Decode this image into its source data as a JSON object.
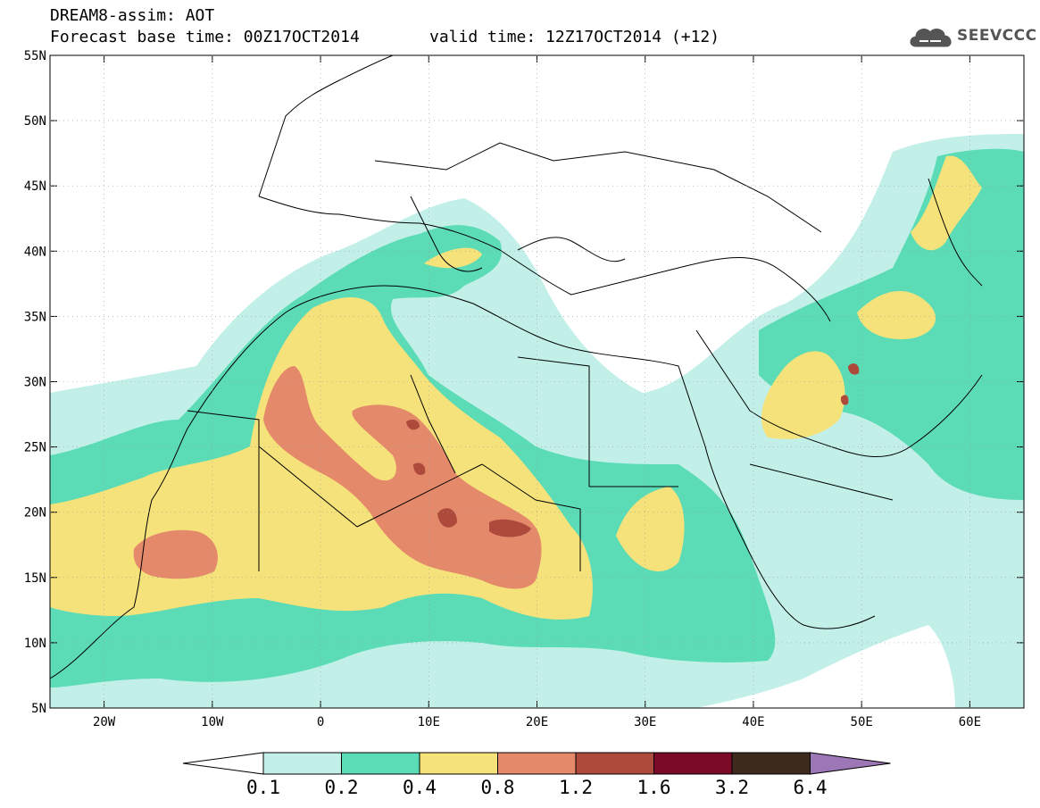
{
  "header": {
    "title": "DREAM8-assim: AOT",
    "base_time": "Forecast base time: 00Z17OCT2014",
    "valid_time": "valid time: 12Z17OCT2014 (+12)",
    "logo_text": "SEEVCCC"
  },
  "map": {
    "variable": "AOT",
    "lon_range": [
      -25,
      65
    ],
    "lat_range": [
      5,
      55
    ],
    "lat_ticks": [
      "55N",
      "50N",
      "45N",
      "40N",
      "35N",
      "30N",
      "25N",
      "20N",
      "15N",
      "10N",
      "5N"
    ],
    "lon_ticks": [
      "20W",
      "10W",
      "0",
      "10E",
      "20E",
      "30E",
      "40E",
      "50E",
      "60E"
    ]
  },
  "colorbar": {
    "levels": [
      "0.1",
      "0.2",
      "0.4",
      "0.8",
      "1.2",
      "1.6",
      "3.2",
      "6.4"
    ],
    "colors": [
      "#c2f0e9",
      "#5bdcb6",
      "#f5e27a",
      "#e5896b",
      "#ad4a3c",
      "#7a0a26",
      "#3d2a1c",
      "#9d76b6"
    ],
    "under_color": "#ffffff"
  }
}
